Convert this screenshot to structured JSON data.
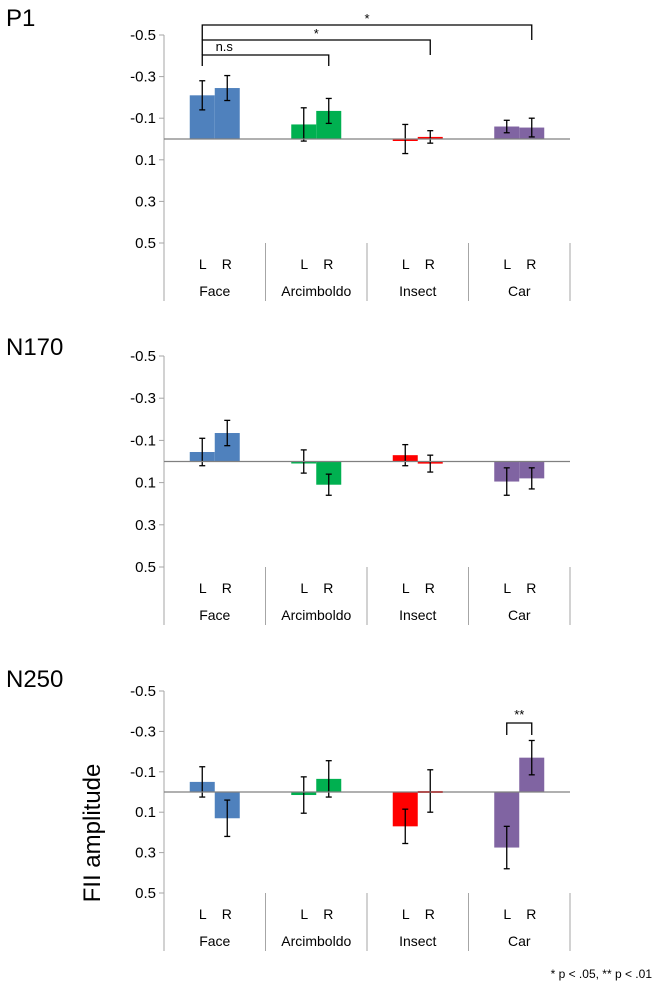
{
  "y_axis_title": "FII amplitude",
  "footnote": "* p < .05, ** p < .01",
  "side_labels": [
    "L",
    "R"
  ],
  "colors": {
    "Face": "#4F81BD",
    "Arcimboldo": "#00B050",
    "Insect": "#FF0000",
    "Car": "#8064A2"
  },
  "chart_data": [
    {
      "type": "bar",
      "title": "P1",
      "ylabel": "",
      "ylim": [
        -0.5,
        0.5
      ],
      "y_inverted": true,
      "yticks": [
        -0.5,
        -0.3,
        -0.1,
        0.1,
        0.3,
        0.5
      ],
      "ytick_labels": [
        "-0.5",
        "-0.3",
        "-0.1",
        "0.1",
        "0.3",
        "0.5"
      ],
      "categories": [
        "Face",
        "Arcimboldo",
        "Insect",
        "Car"
      ],
      "series": [
        {
          "name": "L",
          "values": [
            -0.21,
            -0.07,
            0.0,
            -0.06
          ],
          "errors": [
            0.07,
            0.08,
            0.07,
            0.03
          ]
        },
        {
          "name": "R",
          "values": [
            -0.245,
            -0.135,
            -0.01,
            -0.055
          ],
          "errors": [
            0.06,
            0.06,
            0.03,
            0.045
          ]
        }
      ],
      "significance": [
        {
          "from": "Face-L",
          "to": "Arcimboldo-R",
          "label": "n.s"
        },
        {
          "from": "Face-L",
          "to": "Insect-R",
          "label": "*"
        },
        {
          "from": "Face-L",
          "to": "Car-R",
          "label": "*"
        }
      ]
    },
    {
      "type": "bar",
      "title": "N170",
      "ylabel": "",
      "ylim": [
        -0.5,
        0.5
      ],
      "y_inverted": true,
      "yticks": [
        -0.5,
        -0.3,
        -0.1,
        0.1,
        0.3,
        0.5
      ],
      "ytick_labels": [
        "-0.5",
        "-0.3",
        "-0.1",
        "0.1",
        "0.3",
        "0.5"
      ],
      "categories": [
        "Face",
        "Arcimboldo",
        "Insect",
        "Car"
      ],
      "series": [
        {
          "name": "L",
          "values": [
            -0.045,
            0.0,
            -0.03,
            0.095
          ],
          "errors": [
            0.065,
            0.055,
            0.05,
            0.065
          ]
        },
        {
          "name": "R",
          "values": [
            -0.135,
            0.11,
            0.01,
            0.08
          ],
          "errors": [
            0.06,
            0.05,
            0.04,
            0.05
          ]
        }
      ],
      "significance": []
    },
    {
      "type": "bar",
      "title": "N250",
      "ylabel": "FII amplitude",
      "ylim": [
        -0.5,
        0.5
      ],
      "y_inverted": true,
      "yticks": [
        -0.5,
        -0.3,
        -0.1,
        0.1,
        0.3,
        0.5
      ],
      "ytick_labels": [
        "-0.5",
        "-0.3",
        "-0.1",
        "0.1",
        "0.3",
        "0.5"
      ],
      "categories": [
        "Face",
        "Arcimboldo",
        "Insect",
        "Car"
      ],
      "series": [
        {
          "name": "L",
          "values": [
            -0.05,
            0.015,
            0.17,
            0.275
          ],
          "errors": [
            0.075,
            0.09,
            0.085,
            0.105
          ]
        },
        {
          "name": "R",
          "values": [
            0.13,
            -0.065,
            -0.005,
            -0.17
          ],
          "errors": [
            0.09,
            0.09,
            0.105,
            0.085
          ]
        }
      ],
      "significance": [
        {
          "from": "Car-L",
          "to": "Car-R",
          "label": "**"
        }
      ]
    }
  ]
}
